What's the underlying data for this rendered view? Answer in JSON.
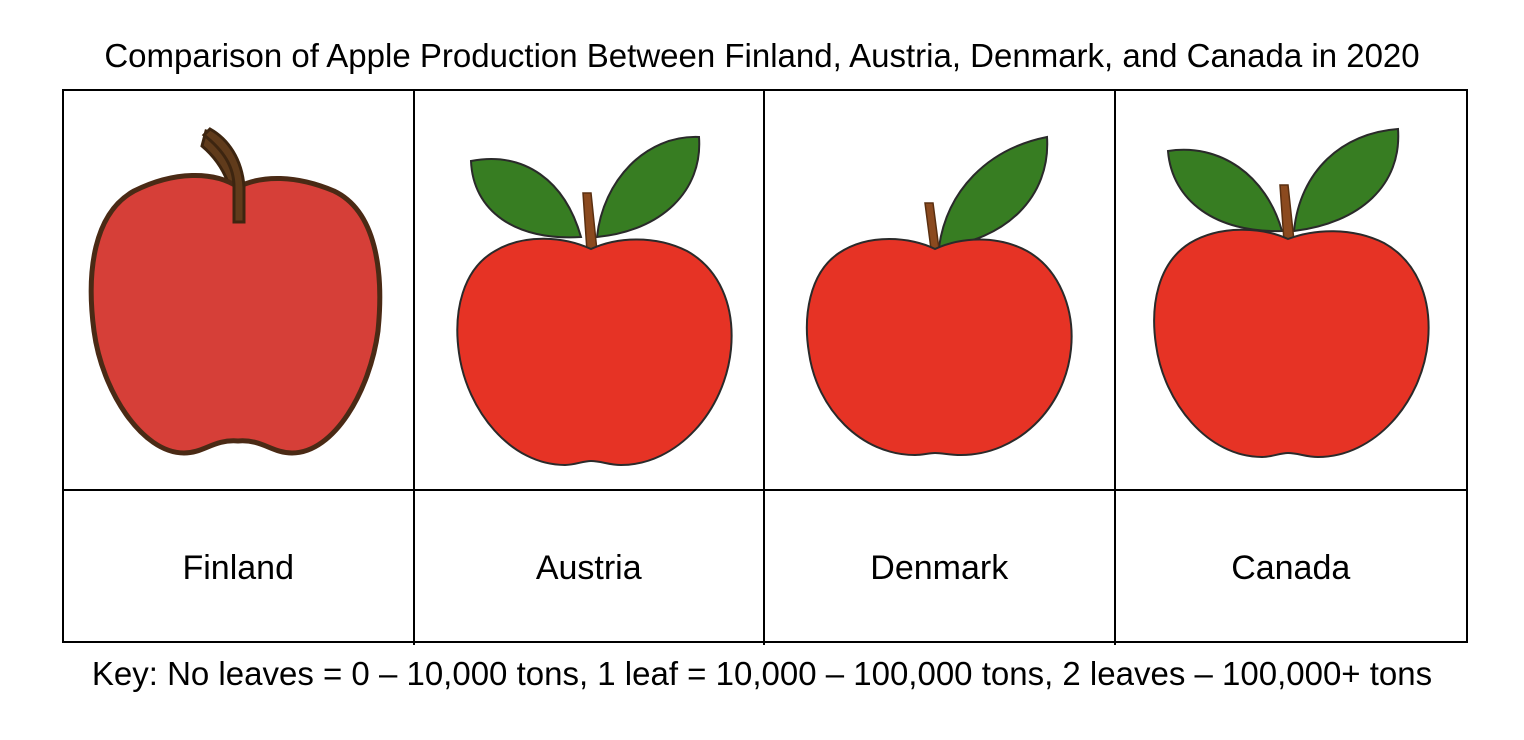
{
  "title": "Comparison of Apple Production Between Finland, Austria, Denmark, and Canada in 2020",
  "key": "Key: No leaves = 0 – 10,000 tons, 1 leaf = 10,000 – 100,000 tons, 2 leaves – 100,000+ tons",
  "colors": {
    "apple_plain": "#d63f38",
    "apple_leafy": "#e63325",
    "leaf": "#377d22",
    "stem_plain": "#603b1b",
    "stem_leafy": "#8b4a1f"
  },
  "chart_data": {
    "type": "table",
    "title": "Comparison of Apple Production Between Finland, Austria, Denmark, and Canada in 2020",
    "legend": [
      {
        "leaves": 0,
        "range": "0 – 10,000 tons"
      },
      {
        "leaves": 1,
        "range": "10,000 – 100,000 tons"
      },
      {
        "leaves": 2,
        "range": "100,000+ tons"
      }
    ],
    "categories": [
      "Finland",
      "Austria",
      "Denmark",
      "Canada"
    ],
    "leaves": [
      0,
      2,
      1,
      2
    ]
  }
}
